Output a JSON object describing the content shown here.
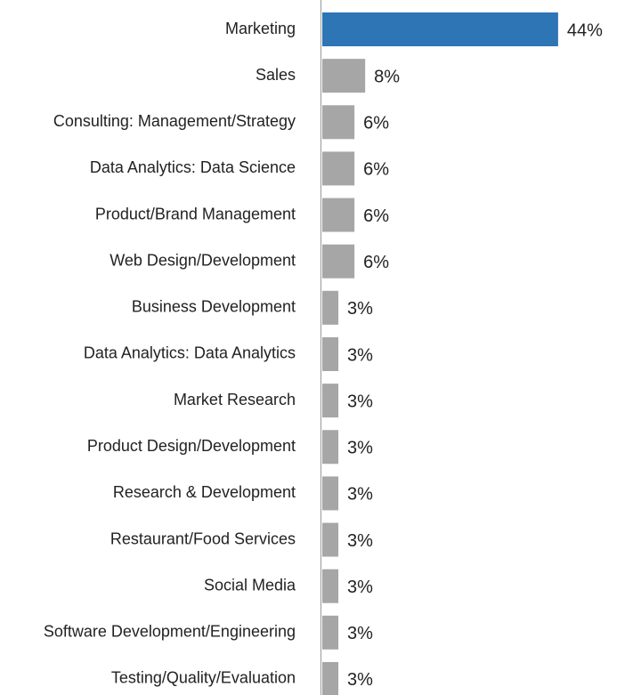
{
  "chart_data": {
    "type": "bar",
    "orientation": "horizontal",
    "categories": [
      "Marketing",
      "Sales",
      "Consulting: Management/Strategy",
      "Data Analytics: Data Science",
      "Product/Brand Management",
      "Web Design/Development",
      "Business Development",
      "Data Analytics: Data Analytics",
      "Market Research",
      "Product Design/Development",
      "Research & Development",
      "Restaurant/Food Services",
      "Social Media",
      "Software Development/Engineering",
      "Testing/Quality/Evaluation"
    ],
    "values": [
      44,
      8,
      6,
      6,
      6,
      6,
      3,
      3,
      3,
      3,
      3,
      3,
      3,
      3,
      3
    ],
    "value_labels": [
      "44%",
      "8%",
      "6%",
      "6%",
      "6%",
      "6%",
      "3%",
      "3%",
      "3%",
      "3%",
      "3%",
      "3%",
      "3%",
      "3%",
      "3%"
    ],
    "colors": [
      "#2e75b6",
      "#a6a6a6",
      "#a6a6a6",
      "#a6a6a6",
      "#a6a6a6",
      "#a6a6a6",
      "#a6a6a6",
      "#a6a6a6",
      "#a6a6a6",
      "#a6a6a6",
      "#a6a6a6",
      "#a6a6a6",
      "#a6a6a6",
      "#a6a6a6",
      "#a6a6a6"
    ],
    "xlim": [
      0,
      50
    ]
  }
}
